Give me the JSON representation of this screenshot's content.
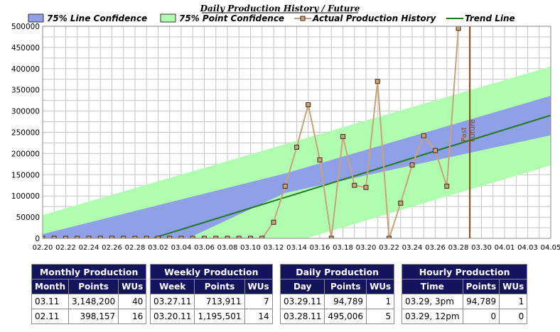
{
  "chart_data": {
    "type": "line",
    "title": "Daily Production History / Future",
    "legend": [
      {
        "label": "75% Line Confidence",
        "kind": "box",
        "color": "#8fa0e6"
      },
      {
        "label": "75% Point Confidence",
        "kind": "box",
        "color": "#b0ffb0"
      },
      {
        "label": "Actual Production History",
        "kind": "marker-line",
        "color": "#c9a27a"
      },
      {
        "label": "Trend Line",
        "kind": "line",
        "color": "#1f7a1f"
      }
    ],
    "legend_position": "top",
    "grid": true,
    "ylim": [
      0,
      500000
    ],
    "yticks": [
      0,
      50000,
      100000,
      150000,
      200000,
      250000,
      300000,
      350000,
      400000,
      450000,
      500000
    ],
    "xlim": [
      "02.20",
      "04.05"
    ],
    "xticks": [
      "02.20",
      "02.22",
      "02.24",
      "02.26",
      "02.28",
      "03.02",
      "03.04",
      "03.06",
      "03.08",
      "03.10",
      "03.12",
      "03.14",
      "03.16",
      "03.18",
      "03.20",
      "03.22",
      "03.24",
      "03.26",
      "03.28",
      "03.30",
      "04.01",
      "04.03",
      "04.05"
    ],
    "series": [
      {
        "name": "Actual Production History",
        "x": [
          "02.20",
          "02.21",
          "02.22",
          "02.23",
          "02.24",
          "02.25",
          "02.26",
          "02.27",
          "02.28",
          "03.01",
          "03.02",
          "03.03",
          "03.04",
          "03.05",
          "03.06",
          "03.07",
          "03.08",
          "03.09",
          "03.10",
          "03.11",
          "03.12",
          "03.13",
          "03.14",
          "03.15",
          "03.16",
          "03.17",
          "03.18",
          "03.19",
          "03.20",
          "03.21",
          "03.22",
          "03.23",
          "03.24",
          "03.25",
          "03.26",
          "03.27",
          "03.28"
        ],
        "y": [
          0,
          0,
          0,
          0,
          0,
          0,
          0,
          0,
          0,
          0,
          0,
          0,
          0,
          0,
          0,
          0,
          0,
          0,
          0,
          0,
          38000,
          123000,
          215000,
          315000,
          185000,
          0,
          240000,
          125000,
          120000,
          370000,
          0,
          83000,
          173000,
          242000,
          207000,
          123000,
          495006
        ]
      },
      {
        "name": "Trend Line",
        "x": [
          "02.20",
          "04.05"
        ],
        "y": [
          -80000,
          290000
        ]
      }
    ],
    "bands": [
      {
        "name": "75% Point Confidence",
        "x": [
          "02.20",
          "04.05"
        ],
        "lower": [
          -185000,
          172000
        ],
        "upper": [
          55000,
          405000
        ]
      },
      {
        "name": "75% Line Confidence",
        "x": [
          "02.20",
          "03.13",
          "04.05"
        ],
        "lower": [
          -160000,
          107000,
          243000
        ],
        "upper": [
          10000,
          153000,
          336000
        ]
      }
    ],
    "divider": {
      "x": "03.29",
      "labels": [
        "Past",
        "Future"
      ]
    }
  },
  "tables": [
    {
      "title": "Monthly Production",
      "headers": [
        "Month",
        "Points",
        "WUs"
      ],
      "rows": [
        [
          "03.11",
          "3,148,200",
          "40"
        ],
        [
          "02.11",
          "398,157",
          "16"
        ]
      ]
    },
    {
      "title": "Weekly Production",
      "headers": [
        "Week",
        "Points",
        "WUs"
      ],
      "rows": [
        [
          "03.27.11",
          "713,911",
          "7"
        ],
        [
          "03.20.11",
          "1,195,501",
          "14"
        ]
      ]
    },
    {
      "title": "Daily Production",
      "headers": [
        "Day",
        "Points",
        "WUs"
      ],
      "rows": [
        [
          "03.29.11",
          "94,789",
          "1"
        ],
        [
          "03.28.11",
          "495,006",
          "5"
        ]
      ]
    },
    {
      "title": "Hourly Production",
      "headers": [
        "Time",
        "Points",
        "WUs"
      ],
      "rows": [
        [
          "03.29, 3pm",
          "94,789",
          "1"
        ],
        [
          "03.29, 12pm",
          "0",
          "0"
        ]
      ]
    }
  ]
}
